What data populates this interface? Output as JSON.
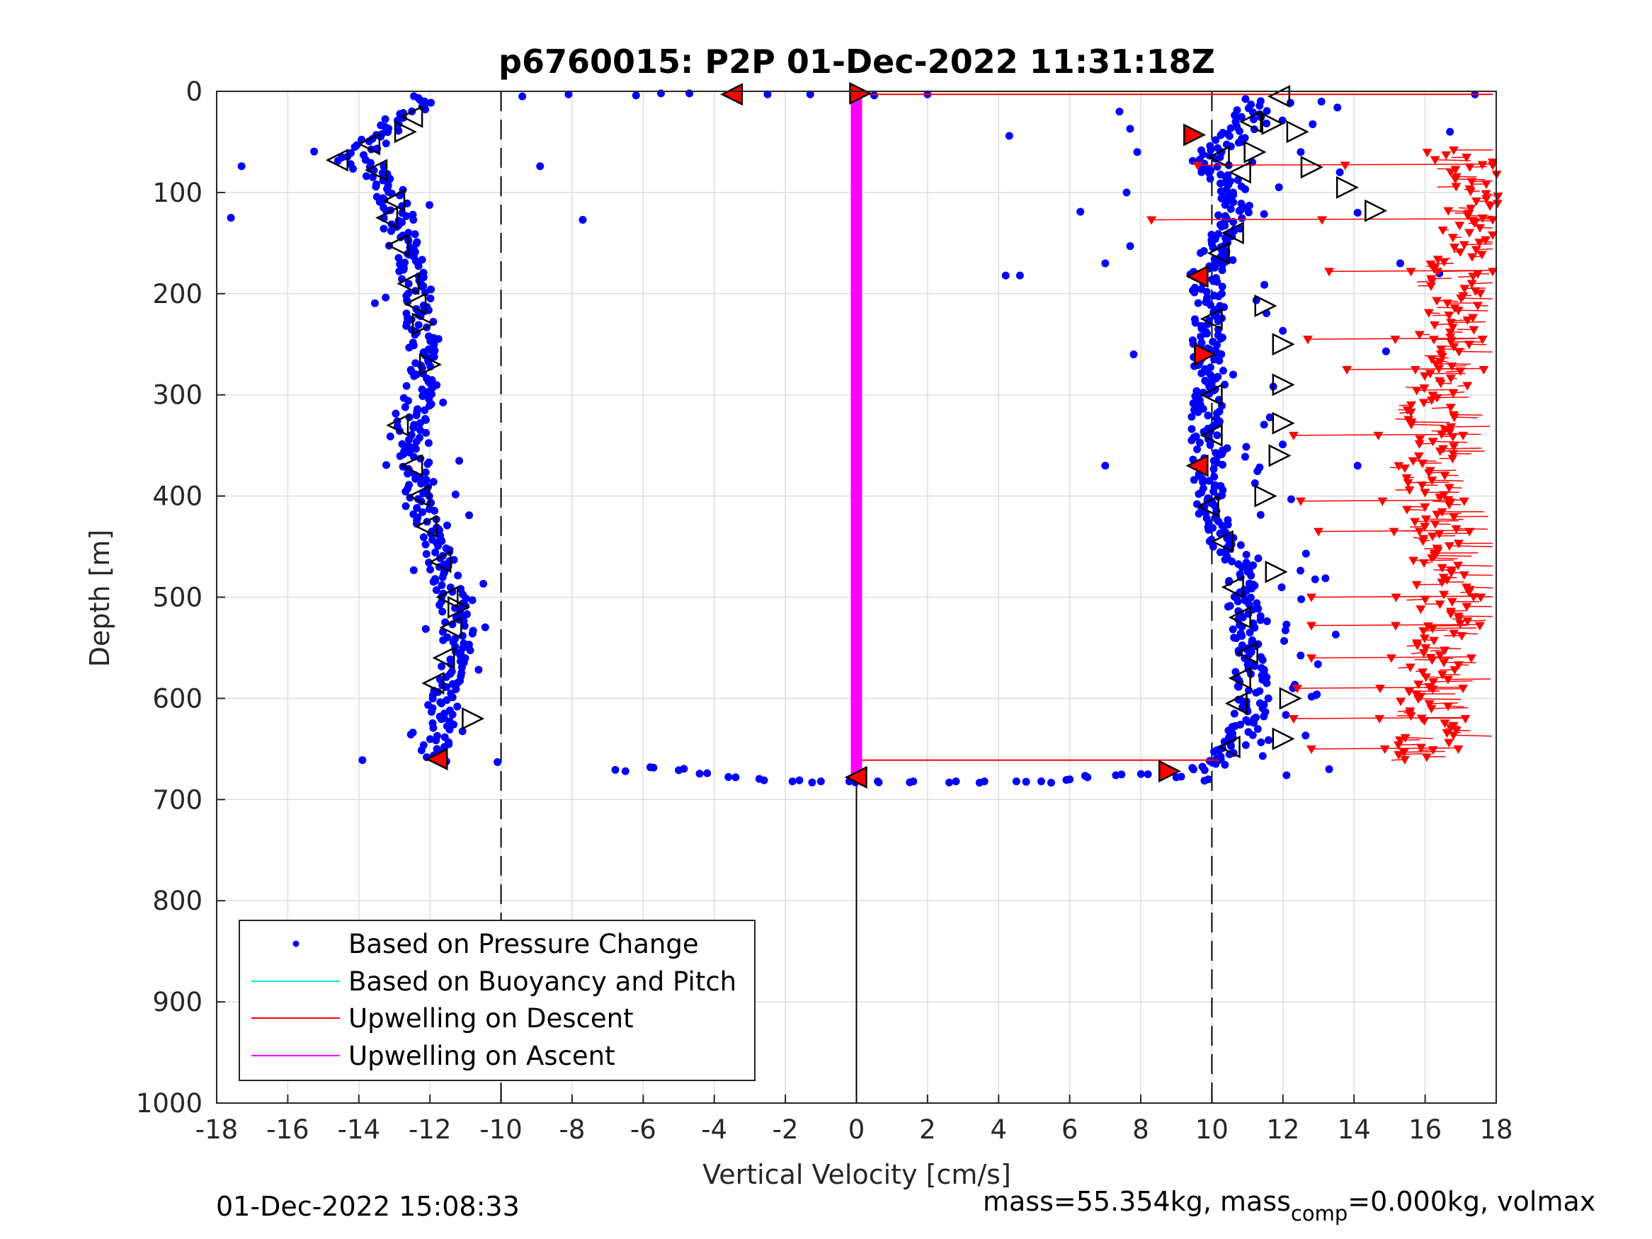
{
  "chart_data": {
    "type": "scatter",
    "title": "p6760015: P2P 01-Dec-2022 11:31:18Z",
    "xlabel": "Vertical Velocity [cm/s]",
    "ylabel": "Depth [m]",
    "xlim": [
      -18,
      18
    ],
    "ylim": [
      0,
      1000
    ],
    "y_reversed": true,
    "x_ticks": [
      "-18",
      "-16",
      "-14",
      "-12",
      "-10",
      "-8",
      "-6",
      "-4",
      "-2",
      "0",
      "2",
      "4",
      "6",
      "8",
      "10",
      "12",
      "14",
      "16",
      "18"
    ],
    "y_ticks": [
      "0",
      "100",
      "200",
      "300",
      "400",
      "500",
      "600",
      "700",
      "800",
      "900",
      "1000"
    ],
    "grid": true,
    "reference_lines": {
      "dashed_x": [
        -10,
        10
      ],
      "solid_x": [
        0
      ]
    },
    "legend": {
      "placement": "bottom-left",
      "entries": [
        {
          "label": "Based on Pressure Change",
          "color": "#0000ff",
          "marker": "dot"
        },
        {
          "label": "Based on Buoyancy and Pitch",
          "color": "#00e5ee",
          "marker": "line"
        },
        {
          "label": "Upwelling on Descent",
          "color": "#ff0000",
          "marker": "line"
        },
        {
          "label": "Upwelling on Ascent",
          "color": "#ff00ff",
          "marker": "line"
        }
      ]
    },
    "series": [
      {
        "name": "Based on Pressure Change",
        "color": "#0000ff",
        "descent_profile": [
          [
            -12.0,
            5
          ],
          [
            -12.6,
            20
          ],
          [
            -13.3,
            40
          ],
          [
            -13.8,
            55
          ],
          [
            -14.2,
            68
          ],
          [
            -13.6,
            82
          ],
          [
            -13.1,
            100
          ],
          [
            -12.9,
            125
          ],
          [
            -12.8,
            150
          ],
          [
            -12.4,
            180
          ],
          [
            -12.3,
            210
          ],
          [
            -12.2,
            240
          ],
          [
            -12.1,
            270
          ],
          [
            -12.3,
            300
          ],
          [
            -12.6,
            330
          ],
          [
            -12.4,
            360
          ],
          [
            -12.3,
            390
          ],
          [
            -12.0,
            420
          ],
          [
            -11.8,
            450
          ],
          [
            -11.5,
            480
          ],
          [
            -11.3,
            510
          ],
          [
            -11.2,
            540
          ],
          [
            -11.4,
            570
          ],
          [
            -11.6,
            600
          ],
          [
            -11.8,
            630
          ],
          [
            -11.9,
            660
          ]
        ],
        "ascent_profile": [
          [
            11.2,
            10
          ],
          [
            11.0,
            30
          ],
          [
            10.4,
            50
          ],
          [
            9.8,
            70
          ],
          [
            10.4,
            90
          ],
          [
            10.8,
            110
          ],
          [
            10.3,
            140
          ],
          [
            10.0,
            165
          ],
          [
            9.8,
            185
          ],
          [
            10.0,
            210
          ],
          [
            9.9,
            235
          ],
          [
            9.9,
            260
          ],
          [
            10.0,
            285
          ],
          [
            9.9,
            310
          ],
          [
            9.8,
            335
          ],
          [
            9.9,
            360
          ],
          [
            9.8,
            385
          ],
          [
            9.9,
            410
          ],
          [
            10.2,
            435
          ],
          [
            10.6,
            460
          ],
          [
            10.8,
            485
          ],
          [
            10.9,
            510
          ],
          [
            11.0,
            540
          ],
          [
            11.1,
            570
          ],
          [
            11.2,
            600
          ],
          [
            11.0,
            625
          ],
          [
            10.5,
            650
          ],
          [
            9.8,
            670
          ]
        ],
        "outliers": [
          [
            -17.3,
            74
          ],
          [
            -17.6,
            125
          ],
          [
            -13.9,
            661
          ],
          [
            -10.1,
            663
          ],
          [
            -8.9,
            74
          ],
          [
            -7.7,
            127
          ],
          [
            -9.4,
            5
          ],
          [
            -8.1,
            3
          ],
          [
            -6.2,
            4
          ],
          [
            -5.5,
            2
          ],
          [
            -4.7,
            2
          ],
          [
            -2.5,
            3
          ],
          [
            -1.3,
            3
          ],
          [
            0.5,
            4
          ],
          [
            2.0,
            3
          ],
          [
            4.3,
            44
          ],
          [
            4.2,
            182
          ],
          [
            4.6,
            182
          ],
          [
            6.3,
            119
          ],
          [
            7.0,
            170
          ],
          [
            7.7,
            153
          ],
          [
            7.8,
            260
          ],
          [
            7.0,
            370
          ],
          [
            7.4,
            20
          ],
          [
            7.7,
            37
          ],
          [
            7.9,
            60
          ],
          [
            7.6,
            100
          ],
          [
            12.5,
            60
          ],
          [
            13.6,
            80
          ],
          [
            14.1,
            120
          ],
          [
            14.9,
            257
          ],
          [
            16.7,
            40
          ],
          [
            14.1,
            370
          ],
          [
            12.1,
            676
          ],
          [
            13.3,
            670
          ],
          [
            17.4,
            3
          ],
          [
            15.3,
            170
          ],
          [
            16.4,
            180
          ]
        ],
        "bottom_turn": [
          [
            -6.5,
            672
          ],
          [
            -5.8,
            668
          ],
          [
            -5.0,
            671
          ],
          [
            -4.2,
            674
          ],
          [
            -3.4,
            678
          ],
          [
            -2.6,
            681
          ],
          [
            -1.8,
            682
          ],
          [
            -1.0,
            682
          ],
          [
            -0.2,
            682
          ],
          [
            0.6,
            682
          ],
          [
            1.6,
            682
          ],
          [
            2.8,
            682
          ],
          [
            3.6,
            682
          ],
          [
            4.5,
            682
          ],
          [
            5.2,
            682
          ],
          [
            6.0,
            680
          ],
          [
            6.5,
            678
          ],
          [
            7.3,
            676
          ],
          [
            8.2,
            675
          ],
          [
            9.0,
            678
          ],
          [
            9.9,
            680
          ]
        ]
      },
      {
        "name": "Upwelling on Descent",
        "color": "#ff0000",
        "profile": [
          [
            16.8,
            60
          ],
          [
            17.3,
            75
          ],
          [
            17.4,
            90
          ],
          [
            17.5,
            110
          ],
          [
            17.2,
            135
          ],
          [
            17.0,
            160
          ],
          [
            16.9,
            185
          ],
          [
            16.8,
            210
          ],
          [
            16.6,
            240
          ],
          [
            16.7,
            270
          ],
          [
            16.4,
            300
          ],
          [
            16.1,
            330
          ],
          [
            16.0,
            360
          ],
          [
            16.0,
            390
          ],
          [
            16.2,
            420
          ],
          [
            16.3,
            450
          ],
          [
            16.5,
            480
          ],
          [
            16.6,
            510
          ],
          [
            16.5,
            540
          ],
          [
            16.2,
            570
          ],
          [
            16.0,
            600
          ],
          [
            16.2,
            630
          ],
          [
            15.8,
            660
          ]
        ],
        "spikes": [
          [
            9.6,
            73
          ],
          [
            8.3,
            127
          ],
          [
            13.3,
            178
          ],
          [
            12.7,
            245
          ],
          [
            13.8,
            275
          ],
          [
            12.3,
            340
          ],
          [
            12.5,
            405
          ],
          [
            13.0,
            435
          ],
          [
            12.8,
            500
          ],
          [
            12.8,
            528
          ],
          [
            12.8,
            560
          ],
          [
            12.4,
            590
          ],
          [
            12.3,
            620
          ],
          [
            12.8,
            650
          ]
        ]
      },
      {
        "name": "Upwelling on Ascent",
        "color": "#ff00ff",
        "x": [
          0,
          0
        ],
        "y": [
          5,
          680
        ]
      }
    ],
    "markers": {
      "open_right": [
        [
          -12.7,
          40
        ],
        [
          -12.2,
          230
        ],
        [
          -12.0,
          270
        ],
        [
          -11.2,
          510
        ],
        [
          -10.8,
          620
        ],
        [
          11.7,
          32
        ],
        [
          12.4,
          40
        ],
        [
          11.2,
          60
        ],
        [
          12.8,
          75
        ],
        [
          13.8,
          95
        ],
        [
          14.6,
          118
        ],
        [
          11.5,
          212
        ],
        [
          12.0,
          250
        ],
        [
          12.0,
          290
        ],
        [
          12.0,
          328
        ],
        [
          11.9,
          360
        ],
        [
          11.5,
          400
        ],
        [
          11.8,
          475
        ],
        [
          12.2,
          600
        ],
        [
          12.0,
          640
        ]
      ],
      "open_left": [
        [
          -12.5,
          25
        ],
        [
          -13.7,
          52
        ],
        [
          -14.6,
          68
        ],
        [
          -13.5,
          78
        ],
        [
          -13.0,
          108
        ],
        [
          -13.2,
          125
        ],
        [
          -12.9,
          152
        ],
        [
          -12.6,
          190
        ],
        [
          -12.4,
          210
        ],
        [
          -12.9,
          330
        ],
        [
          -12.5,
          370
        ],
        [
          -12.3,
          400
        ],
        [
          -12.1,
          430
        ],
        [
          -11.7,
          465
        ],
        [
          -11.5,
          500
        ],
        [
          -11.4,
          530
        ],
        [
          -11.6,
          560
        ],
        [
          -11.9,
          585
        ],
        [
          11.9,
          5
        ],
        [
          11.1,
          30
        ],
        [
          10.2,
          65
        ],
        [
          10.8,
          80
        ],
        [
          10.6,
          140
        ],
        [
          10.2,
          160
        ],
        [
          10.0,
          225
        ],
        [
          10.0,
          300
        ],
        [
          10.0,
          340
        ],
        [
          9.9,
          410
        ],
        [
          10.3,
          445
        ],
        [
          10.6,
          490
        ],
        [
          10.8,
          520
        ],
        [
          11.0,
          555
        ],
        [
          10.8,
          580
        ],
        [
          10.7,
          605
        ],
        [
          10.5,
          648
        ]
      ],
      "red_fill": [
        [
          -3.5,
          3
        ],
        [
          0.1,
          2
        ],
        [
          0.0,
          678
        ],
        [
          9.5,
          43
        ],
        [
          9.6,
          183
        ],
        [
          9.8,
          260
        ],
        [
          9.6,
          370
        ],
        [
          8.8,
          672
        ],
        [
          -11.8,
          660
        ]
      ]
    }
  },
  "footer": {
    "timestamp": "01-Dec-2022 15:08:33",
    "mass_prefix": "mass=55.354kg, mass",
    "mass_sub": "comp",
    "mass_suffix": "=0.000kg, volmax"
  }
}
